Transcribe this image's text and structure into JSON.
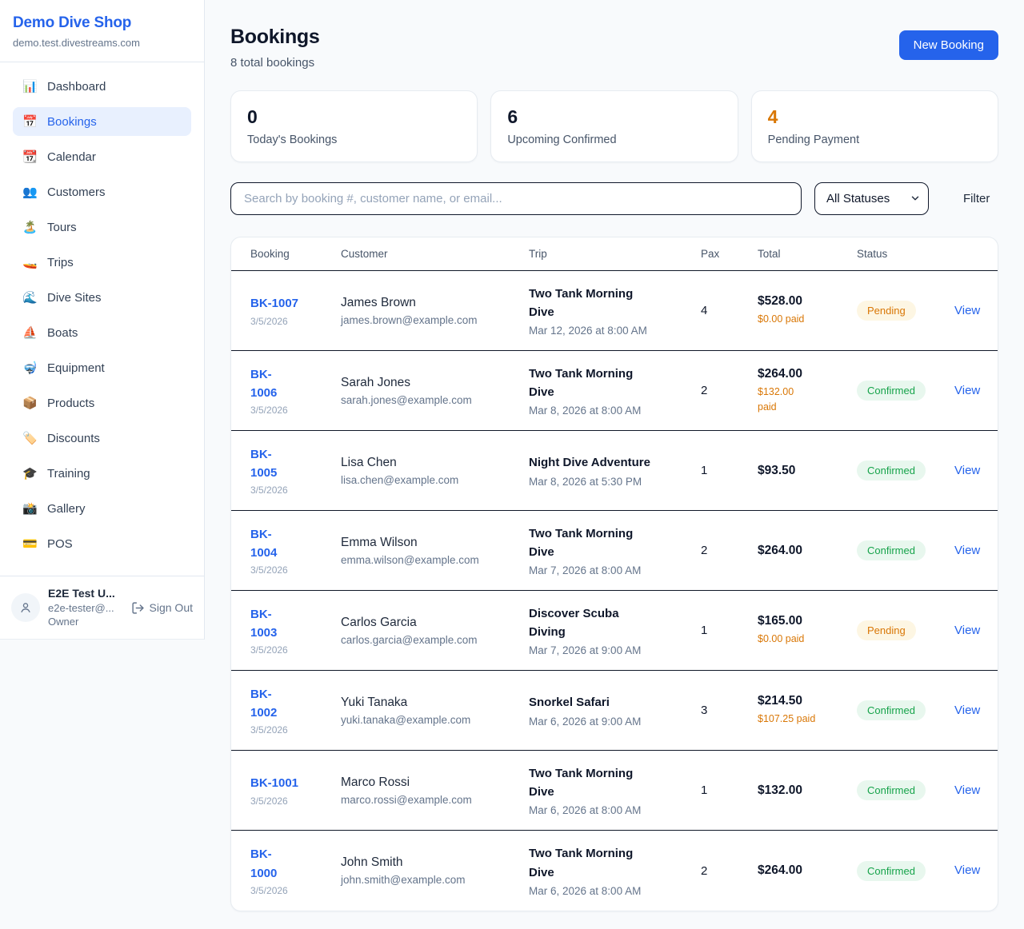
{
  "sidebar": {
    "title": "Demo Dive Shop",
    "domain": "demo.test.divestreams.com",
    "items": [
      {
        "label": "Dashboard",
        "icon": "📊",
        "icon_name": "bar-chart-icon",
        "active": false
      },
      {
        "label": "Bookings",
        "icon": "📅",
        "icon_name": "calendar-icon",
        "active": true
      },
      {
        "label": "Calendar",
        "icon": "📆",
        "icon_name": "tearoff-calendar-icon",
        "active": false
      },
      {
        "label": "Customers",
        "icon": "👥",
        "icon_name": "people-icon",
        "active": false
      },
      {
        "label": "Tours",
        "icon": "🏝️",
        "icon_name": "island-icon",
        "active": false
      },
      {
        "label": "Trips",
        "icon": "🚤",
        "icon_name": "speedboat-icon",
        "active": false
      },
      {
        "label": "Dive Sites",
        "icon": "🌊",
        "icon_name": "wave-icon",
        "active": false
      },
      {
        "label": "Boats",
        "icon": "⛵",
        "icon_name": "sailboat-icon",
        "active": false
      },
      {
        "label": "Equipment",
        "icon": "🤿",
        "icon_name": "diving-mask-icon",
        "active": false
      },
      {
        "label": "Products",
        "icon": "📦",
        "icon_name": "package-icon",
        "active": false
      },
      {
        "label": "Discounts",
        "icon": "🏷️",
        "icon_name": "tag-icon",
        "active": false
      },
      {
        "label": "Training",
        "icon": "🎓",
        "icon_name": "graduation-cap-icon",
        "active": false
      },
      {
        "label": "Gallery",
        "icon": "📸",
        "icon_name": "camera-icon",
        "active": false
      },
      {
        "label": "POS",
        "icon": "💳",
        "icon_name": "credit-card-icon",
        "active": false
      }
    ],
    "user": {
      "name": "E2E Test U...",
      "email": "e2e-tester@...",
      "role": "Owner",
      "sign_out_label": "Sign Out"
    }
  },
  "header": {
    "title": "Bookings",
    "subtitle": "8 total bookings",
    "new_booking_label": "New Booking"
  },
  "stats": [
    {
      "value": "0",
      "label": "Today's Bookings",
      "accent": false
    },
    {
      "value": "6",
      "label": "Upcoming Confirmed",
      "accent": false
    },
    {
      "value": "4",
      "label": "Pending Payment",
      "accent": true
    }
  ],
  "filters": {
    "search_placeholder": "Search by booking #, customer name, or email...",
    "status_select_value": "All Statuses",
    "filter_button_label": "Filter"
  },
  "table": {
    "headers": [
      "Booking",
      "Customer",
      "Trip",
      "Pax",
      "Total",
      "Status"
    ],
    "view_label": "View",
    "rows": [
      {
        "id_lines": [
          "BK-1007"
        ],
        "date": "3/5/2026",
        "name": "James Brown",
        "email": "james.brown@example.com",
        "trip_lines": [
          "Two Tank Morning",
          "Dive"
        ],
        "trip_date": "Mar 12, 2026 at 8:00 AM",
        "pax": "4",
        "total": "$528.00",
        "paid_lines": [
          "$0.00 paid"
        ],
        "status": "Pending"
      },
      {
        "id_lines": [
          "BK-",
          "1006"
        ],
        "date": "3/5/2026",
        "name": "Sarah Jones",
        "email": "sarah.jones@example.com",
        "trip_lines": [
          "Two Tank Morning",
          "Dive"
        ],
        "trip_date": "Mar 8, 2026 at 8:00 AM",
        "pax": "2",
        "total": "$264.00",
        "paid_lines": [
          "$132.00",
          "paid"
        ],
        "status": "Confirmed"
      },
      {
        "id_lines": [
          "BK-",
          "1005"
        ],
        "date": "3/5/2026",
        "name": "Lisa Chen",
        "email": "lisa.chen@example.com",
        "trip_lines": [
          "Night Dive Adventure"
        ],
        "trip_date": "Mar 8, 2026 at 5:30 PM",
        "pax": "1",
        "total": "$93.50",
        "paid_lines": [],
        "status": "Confirmed"
      },
      {
        "id_lines": [
          "BK-",
          "1004"
        ],
        "date": "3/5/2026",
        "name": "Emma Wilson",
        "email": "emma.wilson@example.com",
        "trip_lines": [
          "Two Tank Morning",
          "Dive"
        ],
        "trip_date": "Mar 7, 2026 at 8:00 AM",
        "pax": "2",
        "total": "$264.00",
        "paid_lines": [],
        "status": "Confirmed"
      },
      {
        "id_lines": [
          "BK-",
          "1003"
        ],
        "date": "3/5/2026",
        "name": "Carlos Garcia",
        "email": "carlos.garcia@example.com",
        "trip_lines": [
          "Discover Scuba",
          "Diving"
        ],
        "trip_date": "Mar 7, 2026 at 9:00 AM",
        "pax": "1",
        "total": "$165.00",
        "paid_lines": [
          "$0.00 paid"
        ],
        "status": "Pending"
      },
      {
        "id_lines": [
          "BK-",
          "1002"
        ],
        "date": "3/5/2026",
        "name": "Yuki Tanaka",
        "email": "yuki.tanaka@example.com",
        "trip_lines": [
          "Snorkel Safari"
        ],
        "trip_date": "Mar 6, 2026 at 9:00 AM",
        "pax": "3",
        "total": "$214.50",
        "paid_lines": [
          "$107.25 paid"
        ],
        "status": "Confirmed"
      },
      {
        "id_lines": [
          "BK-1001"
        ],
        "date": "3/5/2026",
        "name": "Marco Rossi",
        "email": "marco.rossi@example.com",
        "trip_lines": [
          "Two Tank Morning",
          "Dive"
        ],
        "trip_date": "Mar 6, 2026 at 8:00 AM",
        "pax": "1",
        "total": "$132.00",
        "paid_lines": [],
        "status": "Confirmed"
      },
      {
        "id_lines": [
          "BK-",
          "1000"
        ],
        "date": "3/5/2026",
        "name": "John Smith",
        "email": "john.smith@example.com",
        "trip_lines": [
          "Two Tank Morning",
          "Dive"
        ],
        "trip_date": "Mar 6, 2026 at 8:00 AM",
        "pax": "2",
        "total": "$264.00",
        "paid_lines": [],
        "status": "Confirmed"
      }
    ]
  },
  "colors": {
    "brand_blue": "#2563eb",
    "accent_orange": "#d97706",
    "pending_badge_bg": "#fdf6e3",
    "pending_badge_text": "#d97706",
    "confirmed_badge_bg": "#e8f7ee",
    "confirmed_badge_text": "#16a34a",
    "link_blue": "#2563eb",
    "page_background": "#f8fafc"
  }
}
